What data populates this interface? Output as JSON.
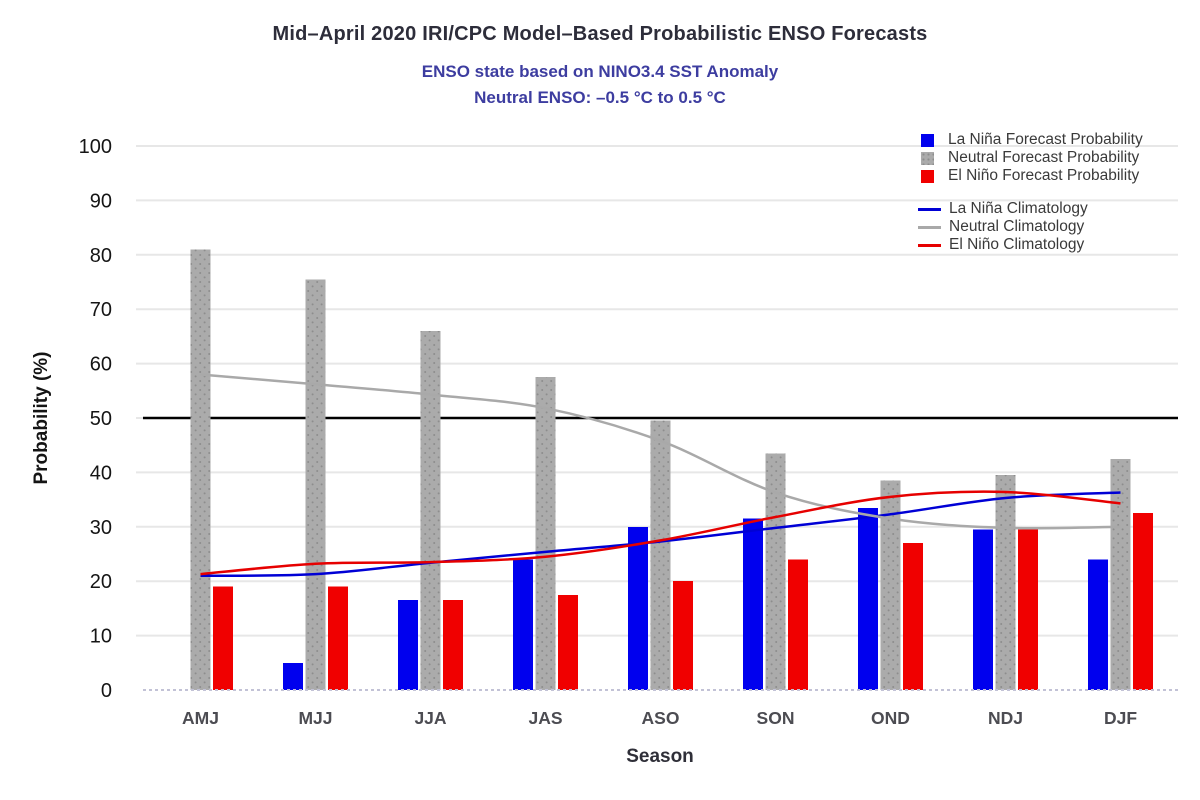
{
  "chart_data": {
    "type": "bar+line",
    "title": "Mid–April 2020 IRI/CPC Model–Based Probabilistic ENSO Forecasts",
    "subtitle": "ENSO state based on NINO3.4 SST Anomaly",
    "subtitle2": "Neutral ENSO: –0.5 °C to 0.5 °C",
    "xlabel": "Season",
    "ylabel": "Probability (%)",
    "categories": [
      "AMJ",
      "MJJ",
      "JJA",
      "JAS",
      "ASO",
      "SON",
      "OND",
      "NDJ",
      "DJF"
    ],
    "bar_series": [
      {
        "name": "La Niña Forecast Probability",
        "color": "#0000ee",
        "values": [
          0,
          5,
          16.5,
          24,
          30,
          31.5,
          33.5,
          29.5,
          24
        ]
      },
      {
        "name": "Neutral Forecast Probability",
        "color": "#ababab",
        "texture": "stipple",
        "values": [
          81,
          75.5,
          66,
          57.5,
          49.5,
          43.5,
          38.5,
          39.5,
          42.5
        ]
      },
      {
        "name": "El Niño Forecast Probability",
        "color": "#f00000",
        "values": [
          19,
          19,
          16.5,
          17.5,
          20,
          24,
          27,
          29.5,
          32.5
        ]
      }
    ],
    "line_series": [
      {
        "name": "La Niña Climatology",
        "color": "#0000d5",
        "values": [
          21,
          21.3,
          23.4,
          25.4,
          27.3,
          29.8,
          32.3,
          35.3,
          36.3
        ]
      },
      {
        "name": "Neutral Climatology",
        "color": "#a9a9a9",
        "values": [
          58,
          56.2,
          54.3,
          51.8,
          45.8,
          36.3,
          31.5,
          29.8,
          30
        ]
      },
      {
        "name": "El Niño Climatology",
        "color": "#e60000",
        "values": [
          21.3,
          23.2,
          23.5,
          24.5,
          27.5,
          31.8,
          35.5,
          36.4,
          34.3
        ]
      }
    ],
    "reference_line_y": 50,
    "ylim": [
      0,
      100
    ],
    "yticks": [
      0,
      10,
      20,
      30,
      40,
      50,
      60,
      70,
      80,
      90,
      100
    ],
    "grid": true,
    "legend_position": "top-right",
    "colors": {
      "grid": "#e7e7e7",
      "reference_line": "#000000",
      "baseline": "#c2c2d6",
      "title_text": "#2d2d3a",
      "subtitle_text": "#3d3da0",
      "y_tick_text": "#151515",
      "x_tick_text": "#4c4c52",
      "legend_text": "#3a3a3a"
    }
  }
}
